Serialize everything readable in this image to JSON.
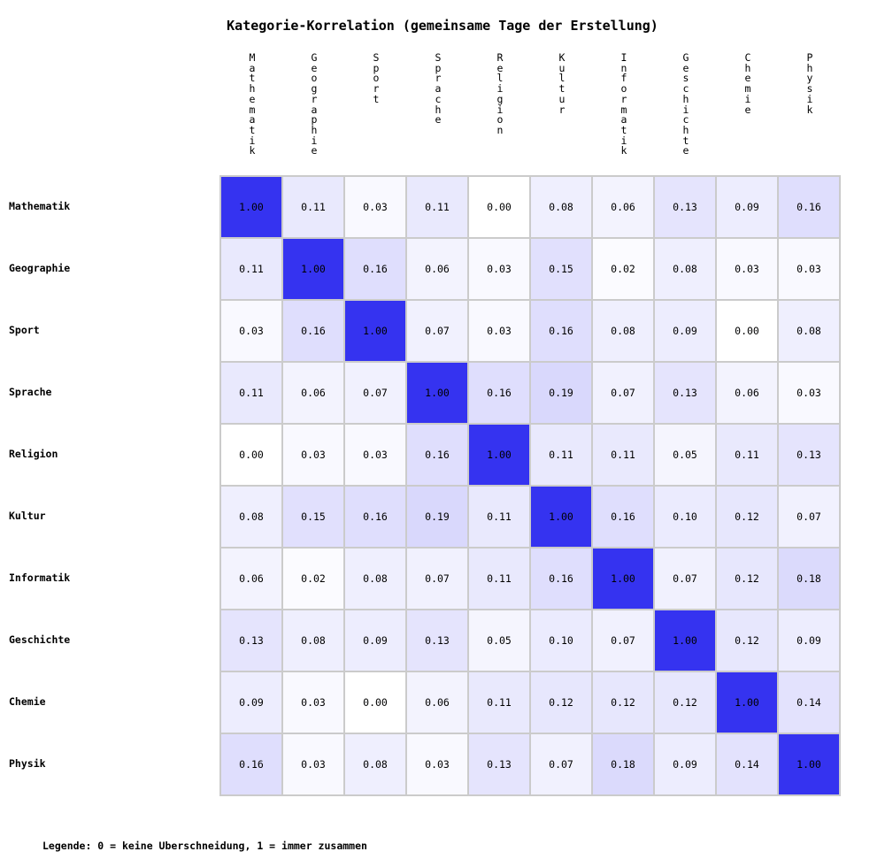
{
  "title": "Kategorie-Korrelation (gemeinsame Tage der Erstellung)",
  "legend": "Legende: 0 = keine Uberschneidung, 1 = immer zusammen",
  "colors": {
    "value_high": "#3533f0",
    "value_low": "#ffffff",
    "grid_line": "#cbcbcb",
    "cell_text": "#000000"
  },
  "chart_data": {
    "type": "heatmap",
    "title": "Kategorie-Korrelation (gemeinsame Tage der Erstellung)",
    "categories": [
      "Mathematik",
      "Geographie",
      "Sport",
      "Sprache",
      "Religion",
      "Kultur",
      "Informatik",
      "Geschichte",
      "Chemie",
      "Physik"
    ],
    "matrix": [
      [
        1.0,
        0.11,
        0.03,
        0.11,
        0.0,
        0.08,
        0.06,
        0.13,
        0.09,
        0.16
      ],
      [
        0.11,
        1.0,
        0.16,
        0.06,
        0.03,
        0.15,
        0.02,
        0.08,
        0.03,
        0.03
      ],
      [
        0.03,
        0.16,
        1.0,
        0.07,
        0.03,
        0.16,
        0.08,
        0.09,
        0.0,
        0.08
      ],
      [
        0.11,
        0.06,
        0.07,
        1.0,
        0.16,
        0.19,
        0.07,
        0.13,
        0.06,
        0.03
      ],
      [
        0.0,
        0.03,
        0.03,
        0.16,
        1.0,
        0.11,
        0.11,
        0.05,
        0.11,
        0.13
      ],
      [
        0.08,
        0.15,
        0.16,
        0.19,
        0.11,
        1.0,
        0.16,
        0.1,
        0.12,
        0.07
      ],
      [
        0.06,
        0.02,
        0.08,
        0.07,
        0.11,
        0.16,
        1.0,
        0.07,
        0.12,
        0.18
      ],
      [
        0.13,
        0.08,
        0.09,
        0.13,
        0.05,
        0.1,
        0.07,
        1.0,
        0.12,
        0.09
      ],
      [
        0.09,
        0.03,
        0.0,
        0.06,
        0.11,
        0.12,
        0.12,
        0.12,
        1.0,
        0.14
      ],
      [
        0.16,
        0.03,
        0.08,
        0.03,
        0.13,
        0.07,
        0.18,
        0.09,
        0.14,
        1.0
      ]
    ],
    "value_range": [
      0,
      1
    ],
    "value_format": "2-decimals",
    "colormap": "white-to-blue",
    "legend_note": "Legende: 0 = keine Uberschneidung, 1 = immer zusammen",
    "layout": {
      "column_headers": "vertical, one character per line, top-aligned above each column",
      "row_labels": "left side, bold, vertically centered per row",
      "cell_size_px": 70,
      "grid_lines": true
    }
  }
}
